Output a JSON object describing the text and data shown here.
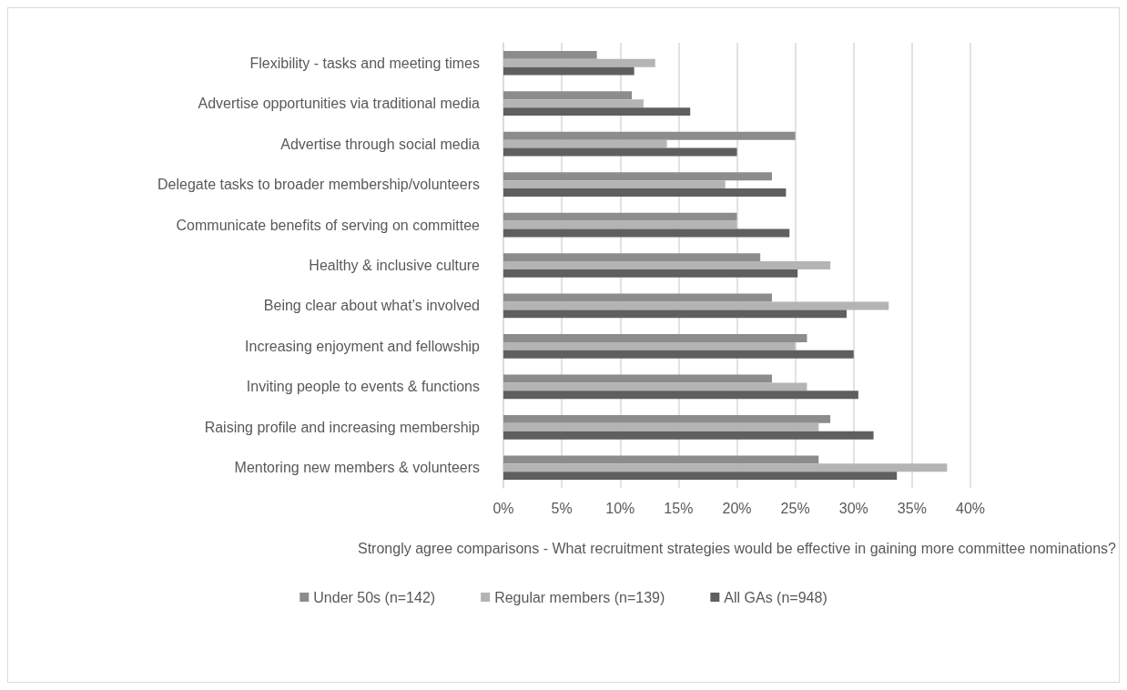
{
  "chart_data": {
    "type": "bar",
    "orientation": "horizontal",
    "xlabel": "Strongly agree comparisons - What recruitment strategies would be effective in gaining more committee nominations?",
    "categories": [
      "Flexibility - tasks and meeting times",
      "Advertise opportunities via traditional media",
      "Advertise through social media",
      "Delegate tasks to broader membership/volunteers",
      "Communicate benefits of serving on committee",
      "Healthy & inclusive culture",
      "Being clear about what’s involved",
      "Increasing enjoyment and fellowship",
      "Inviting people to events & functions",
      "Raising profile and increasing membership",
      "Mentoring new members & volunteers"
    ],
    "series": [
      {
        "name": "Under 50s (n=142)",
        "color": "#8c8c8c",
        "values": [
          8,
          11,
          25,
          23,
          20,
          22,
          23,
          26,
          23,
          28,
          27
        ]
      },
      {
        "name": "Regular members (n=139)",
        "color": "#b4b4b4",
        "values": [
          13,
          12,
          14,
          19,
          20,
          28,
          33,
          25,
          26,
          27,
          38
        ]
      },
      {
        "name": "All GAs (n=948)",
        "color": "#5f5f5f",
        "values": [
          11.2,
          16,
          20,
          24.2,
          24.5,
          25.2,
          29.4,
          30,
          30.4,
          31.7,
          33.7
        ]
      }
    ],
    "xlim": [
      0,
      40
    ],
    "xticks": [
      {
        "value": 0,
        "label": "0%"
      },
      {
        "value": 5,
        "label": "5%"
      },
      {
        "value": 10,
        "label": "10%"
      },
      {
        "value": 15,
        "label": "15%"
      },
      {
        "value": 20,
        "label": "20%"
      },
      {
        "value": 25,
        "label": "25%"
      },
      {
        "value": 30,
        "label": "30%"
      },
      {
        "value": 35,
        "label": "35%"
      },
      {
        "value": 40,
        "label": "40%"
      }
    ],
    "grid": "x",
    "legend": "bottom"
  }
}
